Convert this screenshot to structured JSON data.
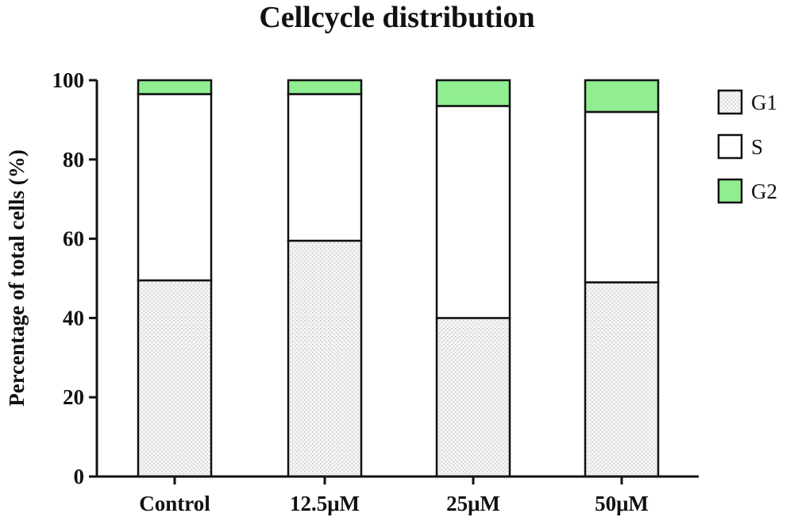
{
  "chart_data": {
    "type": "bar",
    "stacked": true,
    "title": "Cellcycle distribution",
    "xlabel": "",
    "ylabel": "Percentage of total cells (%)",
    "ylim": [
      0,
      100
    ],
    "yticks": [
      0,
      20,
      40,
      60,
      80,
      100
    ],
    "categories": [
      "Control",
      "12.5μM",
      "25μM",
      "50μM"
    ],
    "series": [
      {
        "name": "G1",
        "values": [
          49.5,
          59.5,
          40,
          49
        ],
        "color": "#f2f2f2",
        "pattern": "dotted"
      },
      {
        "name": "S",
        "values": [
          47,
          37,
          53.5,
          43
        ],
        "color": "#ffffff"
      },
      {
        "name": "G2",
        "values": [
          3.5,
          3.5,
          6.5,
          8
        ],
        "color": "#90ee90"
      }
    ],
    "legend_position": "right",
    "grid": false
  }
}
